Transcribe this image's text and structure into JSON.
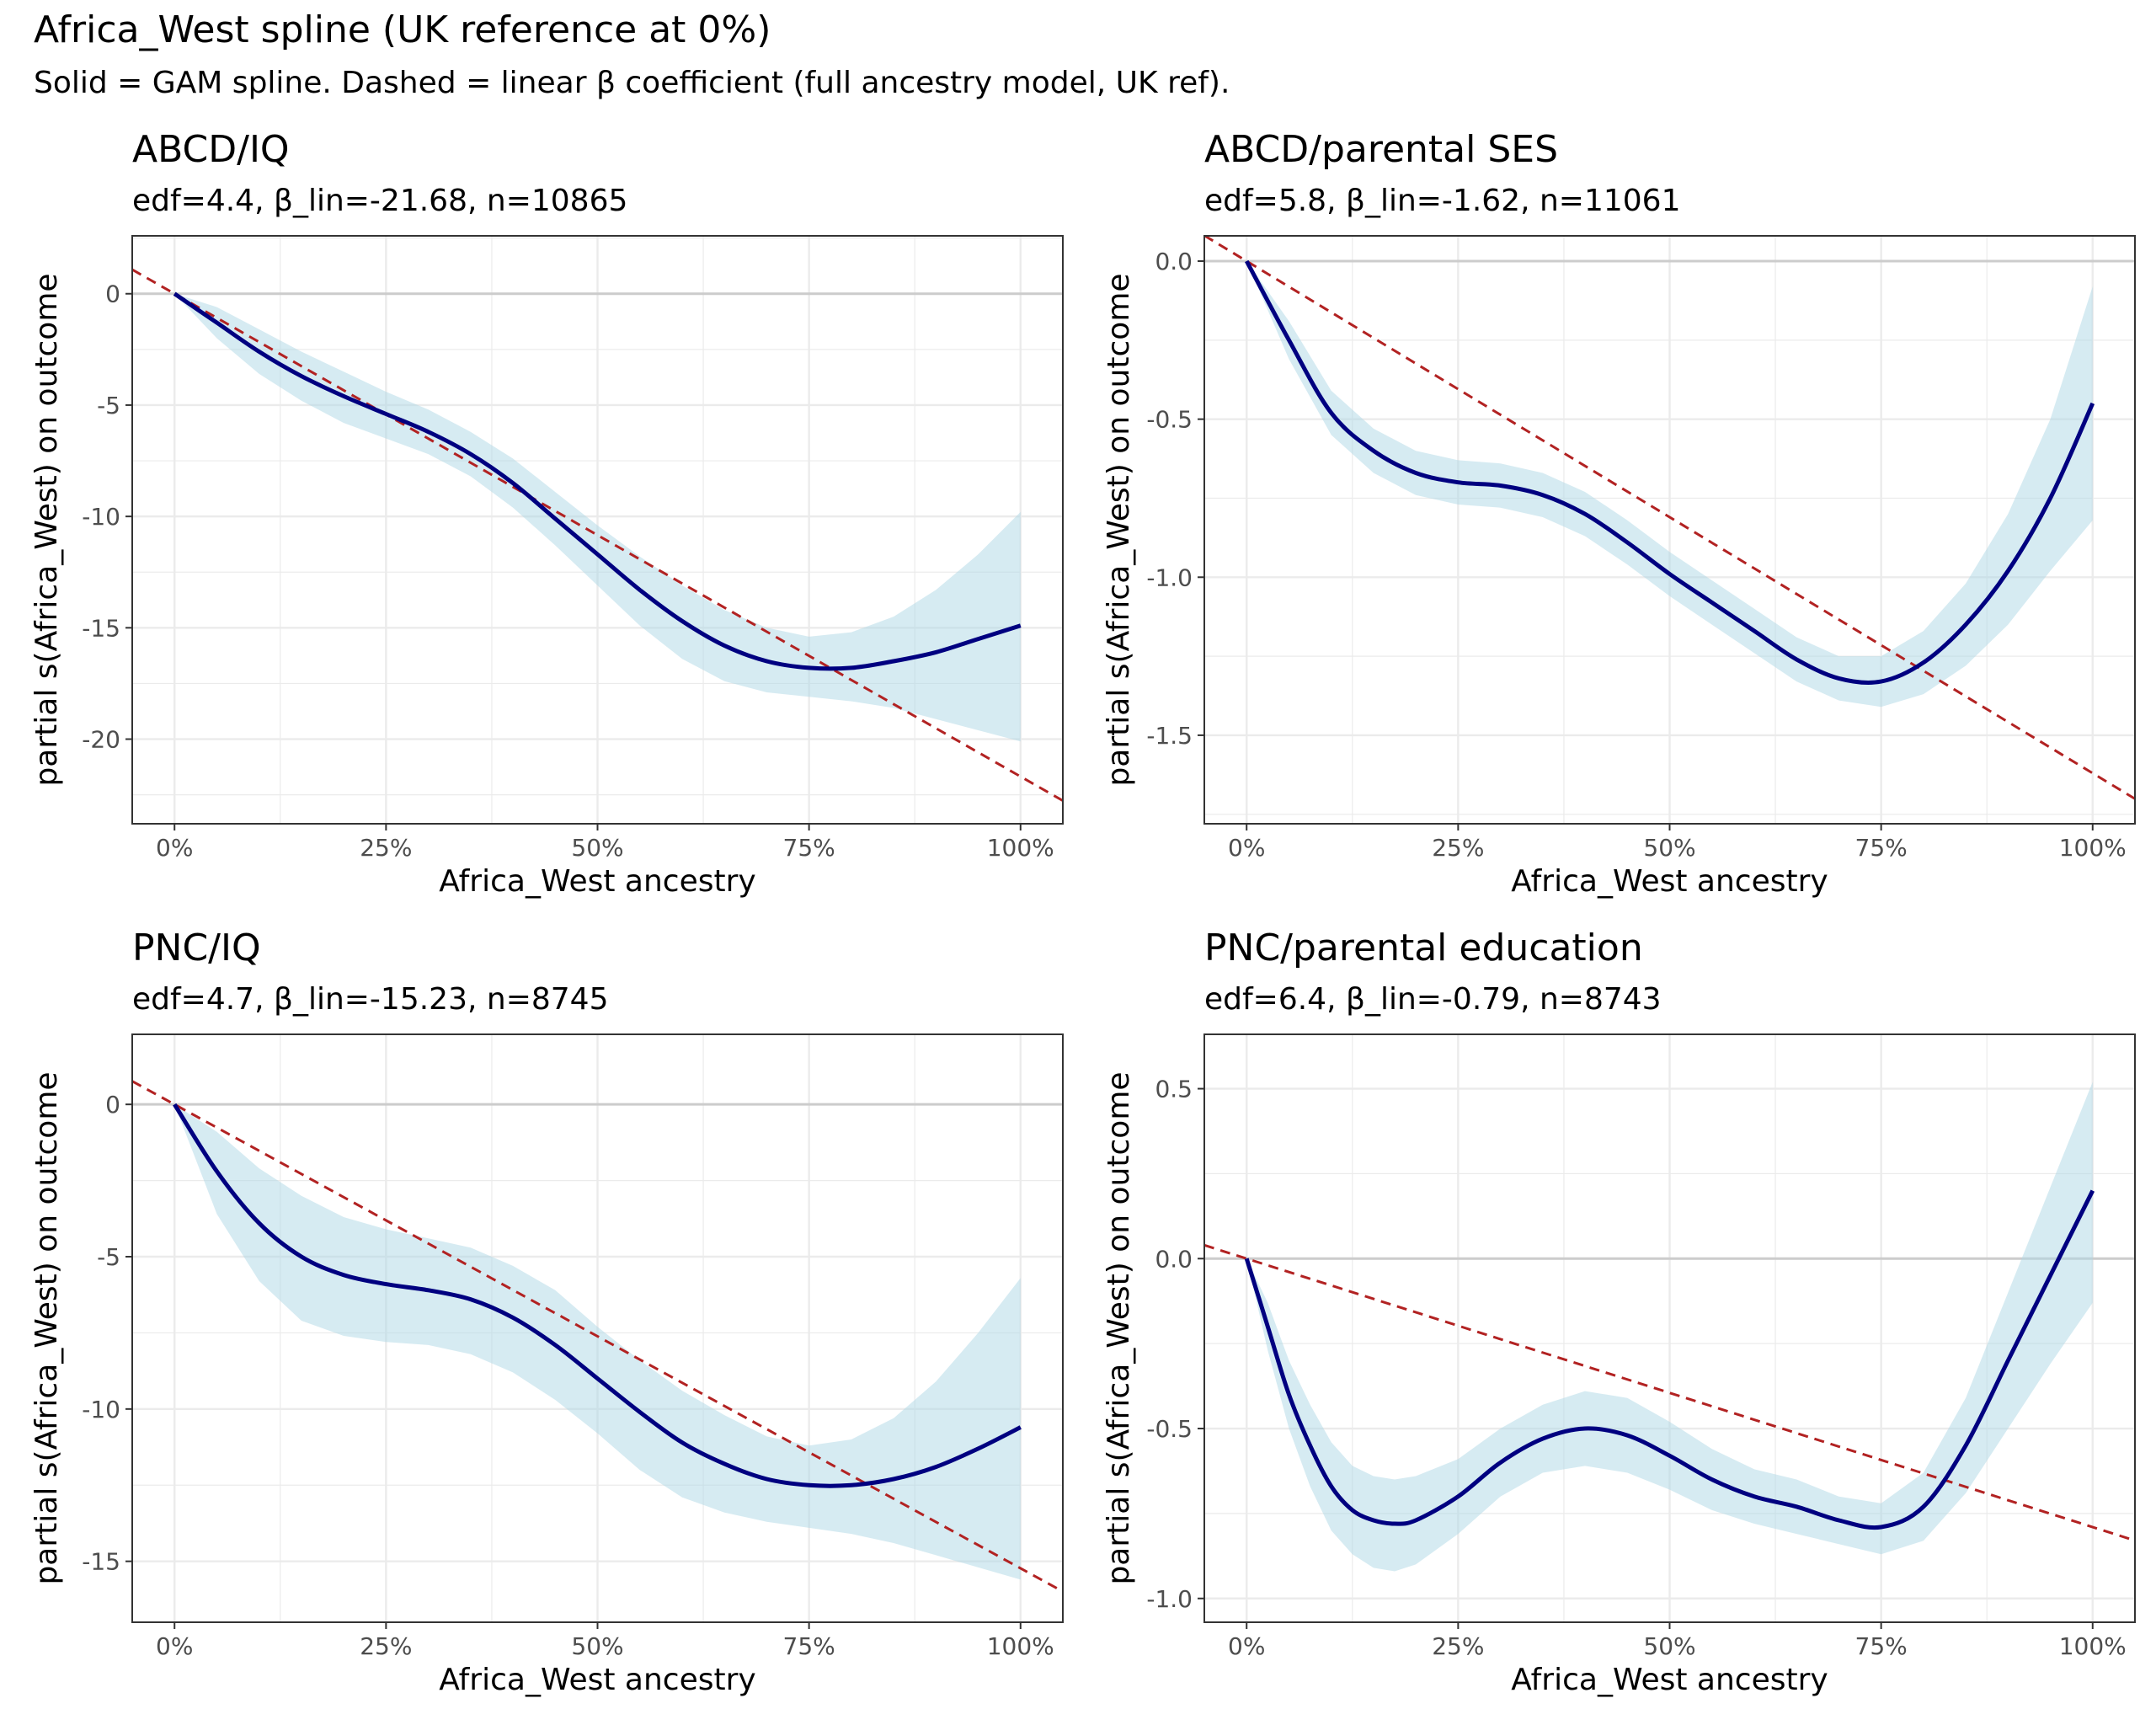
{
  "title": "Africa_West spline (UK reference at 0%)",
  "subtitle": "Solid = GAM spline. Dashed = linear β coefficient (full ancestry model, UK ref).",
  "colors": {
    "spline": "#000080",
    "band": "#add8e6",
    "linear": "#b22222",
    "grid": "#ebebeb",
    "zero": "#cccccc",
    "panel_border": "#333333"
  },
  "chart_data": [
    {
      "type": "line",
      "title": "ABCD/IQ",
      "subtitle": "edf=4.4, β_lin=-21.68, n=10865",
      "xlabel": "Africa_West ancestry",
      "ylabel": "partial s(Africa_West) on outcome",
      "xlim": [
        -0.05,
        1.05
      ],
      "ylim": [
        -23.8,
        2.6
      ],
      "x_ticks": [
        0,
        0.25,
        0.5,
        0.75,
        1
      ],
      "x_tick_labels": [
        "0%",
        "25%",
        "50%",
        "75%",
        "100%"
      ],
      "y_ticks": [
        0,
        -5,
        -10,
        -15,
        -20
      ],
      "y_tick_labels": [
        "0",
        "-5",
        "-10",
        "-15",
        "-20"
      ],
      "linear_slope": -21.68,
      "spline": {
        "x": [
          0,
          0.05,
          0.1,
          0.15,
          0.2,
          0.25,
          0.3,
          0.35,
          0.4,
          0.45,
          0.5,
          0.55,
          0.6,
          0.65,
          0.7,
          0.75,
          0.8,
          0.85,
          0.9,
          0.95,
          1.0
        ],
        "y": [
          0,
          -1.3,
          -2.6,
          -3.7,
          -4.6,
          -5.4,
          -6.2,
          -7.2,
          -8.5,
          -10.1,
          -11.7,
          -13.3,
          -14.7,
          -15.8,
          -16.5,
          -16.8,
          -16.8,
          -16.5,
          -16.1,
          -15.5,
          -14.9
        ],
        "lower": [
          0,
          -2.0,
          -3.6,
          -4.8,
          -5.8,
          -6.5,
          -7.2,
          -8.2,
          -9.6,
          -11.3,
          -13.1,
          -14.9,
          -16.4,
          -17.4,
          -17.9,
          -18.1,
          -18.3,
          -18.6,
          -19.1,
          -19.6,
          -20.1
        ],
        "upper": [
          0,
          -0.6,
          -1.6,
          -2.6,
          -3.5,
          -4.4,
          -5.2,
          -6.2,
          -7.4,
          -8.9,
          -10.4,
          -11.8,
          -13.1,
          -14.2,
          -15.0,
          -15.4,
          -15.2,
          -14.5,
          -13.3,
          -11.7,
          -9.8
        ]
      }
    },
    {
      "type": "line",
      "title": "ABCD/parental SES",
      "subtitle": "edf=5.8, β_lin=-1.62, n=11061",
      "xlabel": "Africa_West ancestry",
      "ylabel": "partial s(Africa_West) on outcome",
      "xlim": [
        -0.05,
        1.05
      ],
      "ylim": [
        -1.78,
        0.08
      ],
      "x_ticks": [
        0,
        0.25,
        0.5,
        0.75,
        1
      ],
      "x_tick_labels": [
        "0%",
        "25%",
        "50%",
        "75%",
        "100%"
      ],
      "y_ticks": [
        0,
        -0.5,
        -1.0,
        -1.5
      ],
      "y_tick_labels": [
        "0.0",
        "-0.5",
        "-1.0",
        "-1.5"
      ],
      "linear_slope": -1.62,
      "spline": {
        "x": [
          0,
          0.05,
          0.1,
          0.15,
          0.2,
          0.25,
          0.3,
          0.35,
          0.4,
          0.45,
          0.5,
          0.55,
          0.6,
          0.65,
          0.7,
          0.75,
          0.8,
          0.85,
          0.9,
          0.95,
          1.0
        ],
        "y": [
          0,
          -0.25,
          -0.48,
          -0.6,
          -0.67,
          -0.7,
          -0.71,
          -0.74,
          -0.8,
          -0.89,
          -0.99,
          -1.08,
          -1.17,
          -1.26,
          -1.32,
          -1.33,
          -1.27,
          -1.15,
          -0.98,
          -0.75,
          -0.45
        ],
        "lower": [
          0,
          -0.31,
          -0.55,
          -0.67,
          -0.74,
          -0.77,
          -0.78,
          -0.81,
          -0.87,
          -0.96,
          -1.06,
          -1.15,
          -1.24,
          -1.33,
          -1.39,
          -1.41,
          -1.37,
          -1.28,
          -1.15,
          -0.98,
          -0.82
        ],
        "upper": [
          0,
          -0.19,
          -0.41,
          -0.53,
          -0.6,
          -0.63,
          -0.64,
          -0.67,
          -0.73,
          -0.82,
          -0.92,
          -1.01,
          -1.1,
          -1.19,
          -1.25,
          -1.25,
          -1.17,
          -1.02,
          -0.8,
          -0.5,
          -0.08
        ]
      }
    },
    {
      "type": "line",
      "title": "PNC/IQ",
      "subtitle": "edf=4.7, β_lin=-15.23, n=8745",
      "xlabel": "Africa_West ancestry",
      "ylabel": "partial s(Africa_West) on outcome",
      "xlim": [
        -0.05,
        1.05
      ],
      "ylim": [
        -17.0,
        2.3
      ],
      "x_ticks": [
        0,
        0.25,
        0.5,
        0.75,
        1
      ],
      "x_tick_labels": [
        "0%",
        "25%",
        "50%",
        "75%",
        "100%"
      ],
      "y_ticks": [
        0,
        -5,
        -10,
        -15
      ],
      "y_tick_labels": [
        "0",
        "-5",
        "-10",
        "-15"
      ],
      "linear_slope": -15.23,
      "spline": {
        "x": [
          0,
          0.05,
          0.1,
          0.15,
          0.2,
          0.25,
          0.3,
          0.35,
          0.4,
          0.45,
          0.5,
          0.55,
          0.6,
          0.65,
          0.7,
          0.75,
          0.8,
          0.85,
          0.9,
          0.95,
          1.0
        ],
        "y": [
          0,
          -2.2,
          -3.9,
          -5.0,
          -5.6,
          -5.9,
          -6.1,
          -6.4,
          -7.0,
          -7.9,
          -9.0,
          -10.1,
          -11.1,
          -11.8,
          -12.3,
          -12.5,
          -12.5,
          -12.3,
          -11.9,
          -11.3,
          -10.6
        ],
        "lower": [
          0,
          -3.6,
          -5.8,
          -7.1,
          -7.6,
          -7.8,
          -7.9,
          -8.2,
          -8.8,
          -9.7,
          -10.8,
          -12.0,
          -12.9,
          -13.4,
          -13.7,
          -13.9,
          -14.1,
          -14.4,
          -14.8,
          -15.2,
          -15.6
        ],
        "upper": [
          0,
          -0.9,
          -2.1,
          -3.0,
          -3.7,
          -4.1,
          -4.4,
          -4.7,
          -5.3,
          -6.1,
          -7.3,
          -8.4,
          -9.4,
          -10.2,
          -10.9,
          -11.2,
          -11.0,
          -10.3,
          -9.1,
          -7.5,
          -5.7
        ]
      }
    },
    {
      "type": "line",
      "title": "PNC/parental education",
      "subtitle": "edf=6.4, β_lin=-0.79, n=8743",
      "xlabel": "Africa_West ancestry",
      "ylabel": "partial s(Africa_West) on outcome",
      "xlim": [
        -0.05,
        1.05
      ],
      "ylim": [
        -1.07,
        0.66
      ],
      "x_ticks": [
        0,
        0.25,
        0.5,
        0.75,
        1
      ],
      "x_tick_labels": [
        "0%",
        "25%",
        "50%",
        "75%",
        "100%"
      ],
      "y_ticks": [
        0.5,
        0,
        -0.5,
        -1.0
      ],
      "y_tick_labels": [
        "0.5",
        "0.0",
        "-0.5",
        "-1.0"
      ],
      "linear_slope": -0.79,
      "spline": {
        "x": [
          0,
          0.025,
          0.05,
          0.075,
          0.1,
          0.125,
          0.15,
          0.175,
          0.2,
          0.25,
          0.3,
          0.35,
          0.4,
          0.45,
          0.5,
          0.55,
          0.6,
          0.65,
          0.7,
          0.75,
          0.8,
          0.85,
          0.9,
          0.95,
          1.0
        ],
        "y": [
          0,
          -0.2,
          -0.4,
          -0.55,
          -0.67,
          -0.74,
          -0.77,
          -0.78,
          -0.77,
          -0.7,
          -0.6,
          -0.53,
          -0.5,
          -0.52,
          -0.58,
          -0.65,
          -0.7,
          -0.73,
          -0.77,
          -0.79,
          -0.73,
          -0.55,
          -0.3,
          -0.05,
          0.2
        ],
        "lower": [
          0,
          -0.27,
          -0.5,
          -0.67,
          -0.8,
          -0.87,
          -0.91,
          -0.92,
          -0.9,
          -0.81,
          -0.7,
          -0.63,
          -0.61,
          -0.63,
          -0.68,
          -0.74,
          -0.78,
          -0.81,
          -0.84,
          -0.87,
          -0.83,
          -0.69,
          -0.5,
          -0.31,
          -0.13
        ],
        "upper": [
          0,
          -0.13,
          -0.3,
          -0.43,
          -0.54,
          -0.61,
          -0.64,
          -0.65,
          -0.64,
          -0.59,
          -0.5,
          -0.43,
          -0.39,
          -0.41,
          -0.48,
          -0.56,
          -0.62,
          -0.65,
          -0.7,
          -0.72,
          -0.63,
          -0.41,
          -0.1,
          0.21,
          0.52
        ]
      }
    }
  ]
}
